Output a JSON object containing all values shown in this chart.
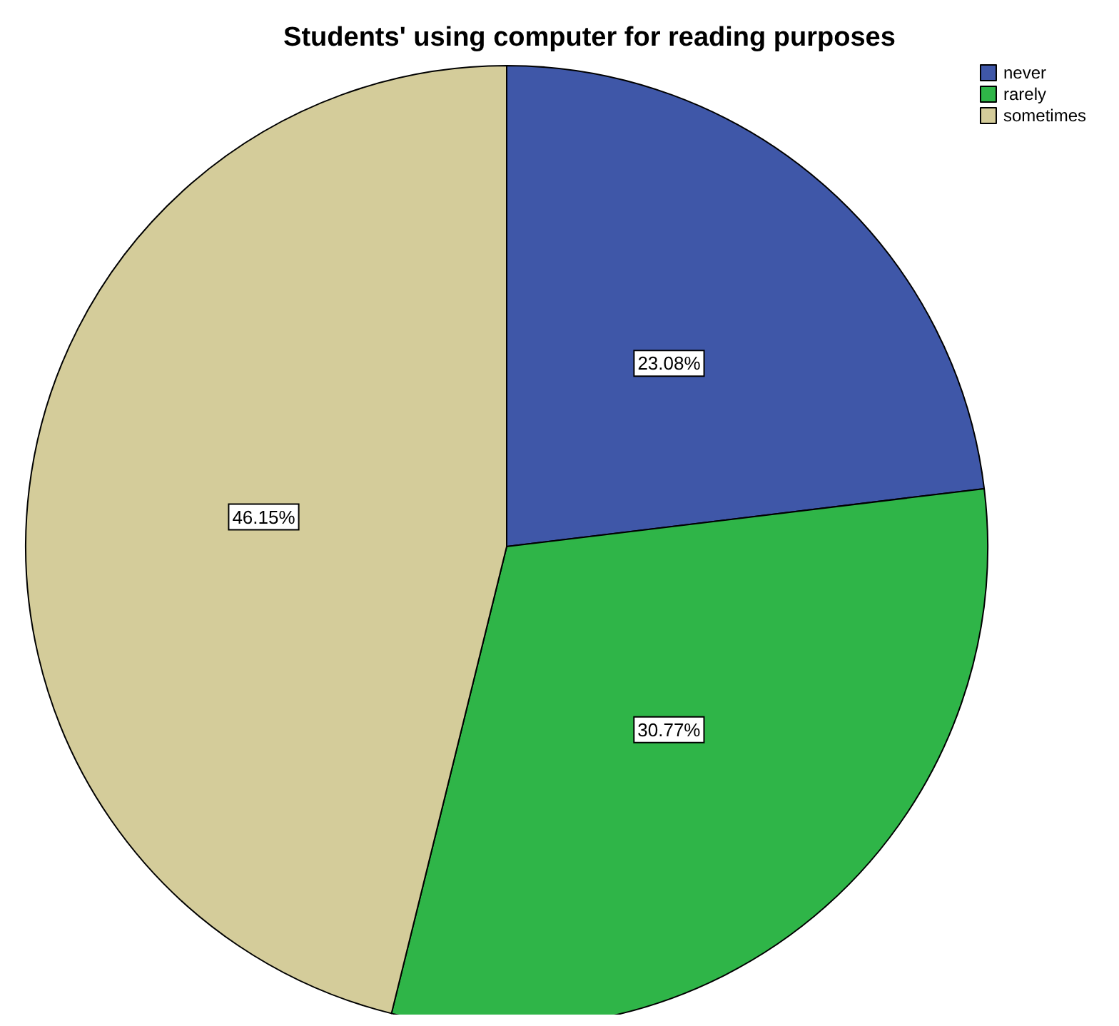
{
  "chart_data": {
    "type": "pie",
    "title": "Students' using computer for reading purposes",
    "categories": [
      "never",
      "rarely",
      "sometimes"
    ],
    "values": [
      23.08,
      30.77,
      46.15
    ],
    "value_labels": [
      "23.08%",
      "30.77%",
      "46.15%"
    ],
    "colors": [
      "#3f57a8",
      "#2fb548",
      "#d4cc9a"
    ],
    "legend": "top right"
  }
}
